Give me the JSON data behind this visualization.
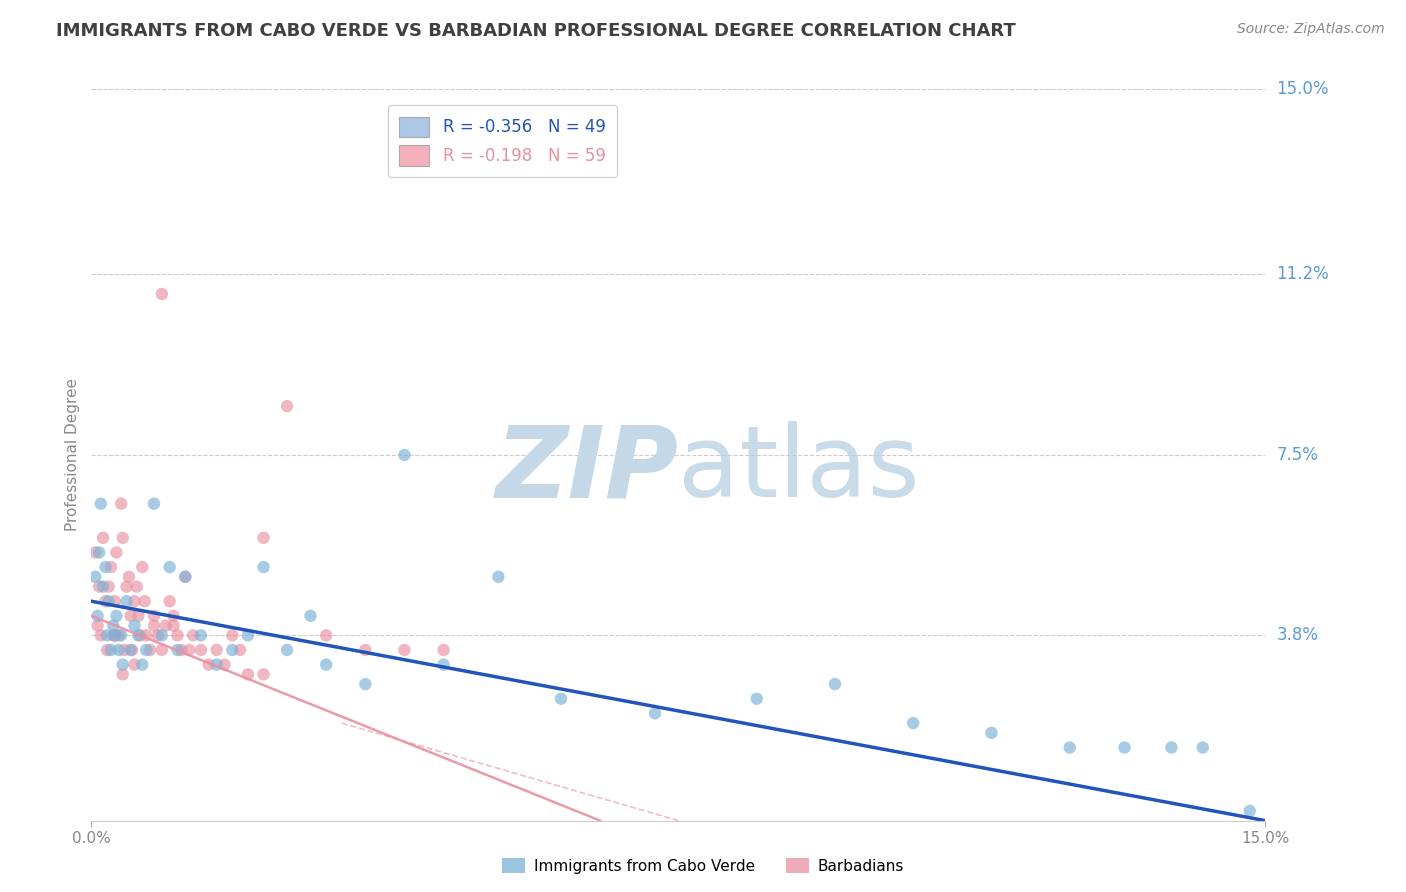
{
  "title": "IMMIGRANTS FROM CABO VERDE VS BARBADIAN PROFESSIONAL DEGREE CORRELATION CHART",
  "source": "Source: ZipAtlas.com",
  "ylabel": "Professional Degree",
  "xlim": [
    0.0,
    15.0
  ],
  "ylim": [
    0.0,
    15.0
  ],
  "right_ytick_vals": [
    15.0,
    11.2,
    7.5,
    3.8
  ],
  "right_ytick_labels": [
    "15.0%",
    "11.2%",
    "7.5%",
    "3.8%"
  ],
  "xtick_vals": [
    0.0,
    15.0
  ],
  "xtick_labels": [
    "0.0%",
    "15.0%"
  ],
  "legend_cv_label": "R = -0.356   N = 49",
  "legend_bv_label": "R = -0.198   N = 59",
  "legend_cv_color": "#aec6e8",
  "legend_bv_color": "#f4b0bc",
  "cabo_verde_color": "#7ab0d8",
  "barbadians_color": "#e890a0",
  "trend_cv_color": "#2255bb",
  "trend_bv_color": "#e890a0",
  "cabo_verde_x": [
    0.05,
    0.08,
    0.1,
    0.12,
    0.15,
    0.18,
    0.2,
    0.22,
    0.25,
    0.28,
    0.3,
    0.32,
    0.35,
    0.38,
    0.4,
    0.45,
    0.5,
    0.55,
    0.6,
    0.65,
    0.7,
    0.8,
    0.9,
    1.0,
    1.1,
    1.2,
    1.4,
    1.6,
    1.8,
    2.0,
    2.2,
    2.5,
    2.8,
    3.0,
    3.5,
    4.0,
    4.5,
    5.2,
    6.0,
    7.2,
    8.5,
    9.5,
    10.5,
    11.5,
    12.5,
    13.2,
    13.8,
    14.2,
    14.8
  ],
  "cabo_verde_y": [
    5.0,
    4.2,
    5.5,
    6.5,
    4.8,
    5.2,
    3.8,
    4.5,
    3.5,
    4.0,
    3.8,
    4.2,
    3.5,
    3.8,
    3.2,
    4.5,
    3.5,
    4.0,
    3.8,
    3.2,
    3.5,
    6.5,
    3.8,
    5.2,
    3.5,
    5.0,
    3.8,
    3.2,
    3.5,
    3.8,
    5.2,
    3.5,
    4.2,
    3.2,
    2.8,
    7.5,
    3.2,
    5.0,
    2.5,
    2.2,
    2.5,
    2.8,
    2.0,
    1.8,
    1.5,
    1.5,
    1.5,
    1.5,
    0.2
  ],
  "barbadians_x": [
    0.05,
    0.08,
    0.1,
    0.12,
    0.15,
    0.18,
    0.2,
    0.22,
    0.25,
    0.28,
    0.3,
    0.32,
    0.35,
    0.38,
    0.4,
    0.42,
    0.45,
    0.48,
    0.5,
    0.52,
    0.55,
    0.58,
    0.6,
    0.62,
    0.65,
    0.68,
    0.7,
    0.75,
    0.8,
    0.85,
    0.9,
    0.95,
    1.0,
    1.05,
    1.1,
    1.15,
    1.2,
    1.25,
    1.3,
    1.4,
    1.5,
    1.6,
    1.7,
    1.8,
    1.9,
    2.0,
    2.2,
    2.5,
    3.0,
    3.5,
    4.0,
    4.5,
    0.3,
    0.55,
    0.8,
    1.05,
    0.9,
    2.2,
    0.4
  ],
  "barbadians_y": [
    5.5,
    4.0,
    4.8,
    3.8,
    5.8,
    4.5,
    3.5,
    4.8,
    5.2,
    3.8,
    4.5,
    5.5,
    3.8,
    6.5,
    5.8,
    3.5,
    4.8,
    5.0,
    4.2,
    3.5,
    4.5,
    4.8,
    4.2,
    3.8,
    5.2,
    4.5,
    3.8,
    3.5,
    4.2,
    3.8,
    3.5,
    4.0,
    4.5,
    4.0,
    3.8,
    3.5,
    5.0,
    3.5,
    3.8,
    3.5,
    3.2,
    3.5,
    3.2,
    3.8,
    3.5,
    3.0,
    5.8,
    8.5,
    3.8,
    3.5,
    3.5,
    3.5,
    3.8,
    3.2,
    4.0,
    4.2,
    10.8,
    3.0,
    3.0
  ],
  "trend_cv_x0": 0.0,
  "trend_cv_x1": 15.0,
  "trend_cv_y0": 4.5,
  "trend_cv_y1": 0.0,
  "trend_bv_x0": 0.0,
  "trend_bv_x1": 6.5,
  "trend_bv_y0": 4.2,
  "trend_bv_y1": 0.0,
  "trend_bv_dashed_x0": 3.2,
  "trend_bv_dashed_x1": 7.5,
  "trend_bv_dashed_y0": 2.0,
  "trend_bv_dashed_y1": 0.0,
  "grid_color": "#cccccc",
  "right_label_color": "#5b9bd5",
  "title_color": "#404040",
  "source_color": "#888888",
  "axis_label_color": "#888888",
  "background_color": "#ffffff"
}
